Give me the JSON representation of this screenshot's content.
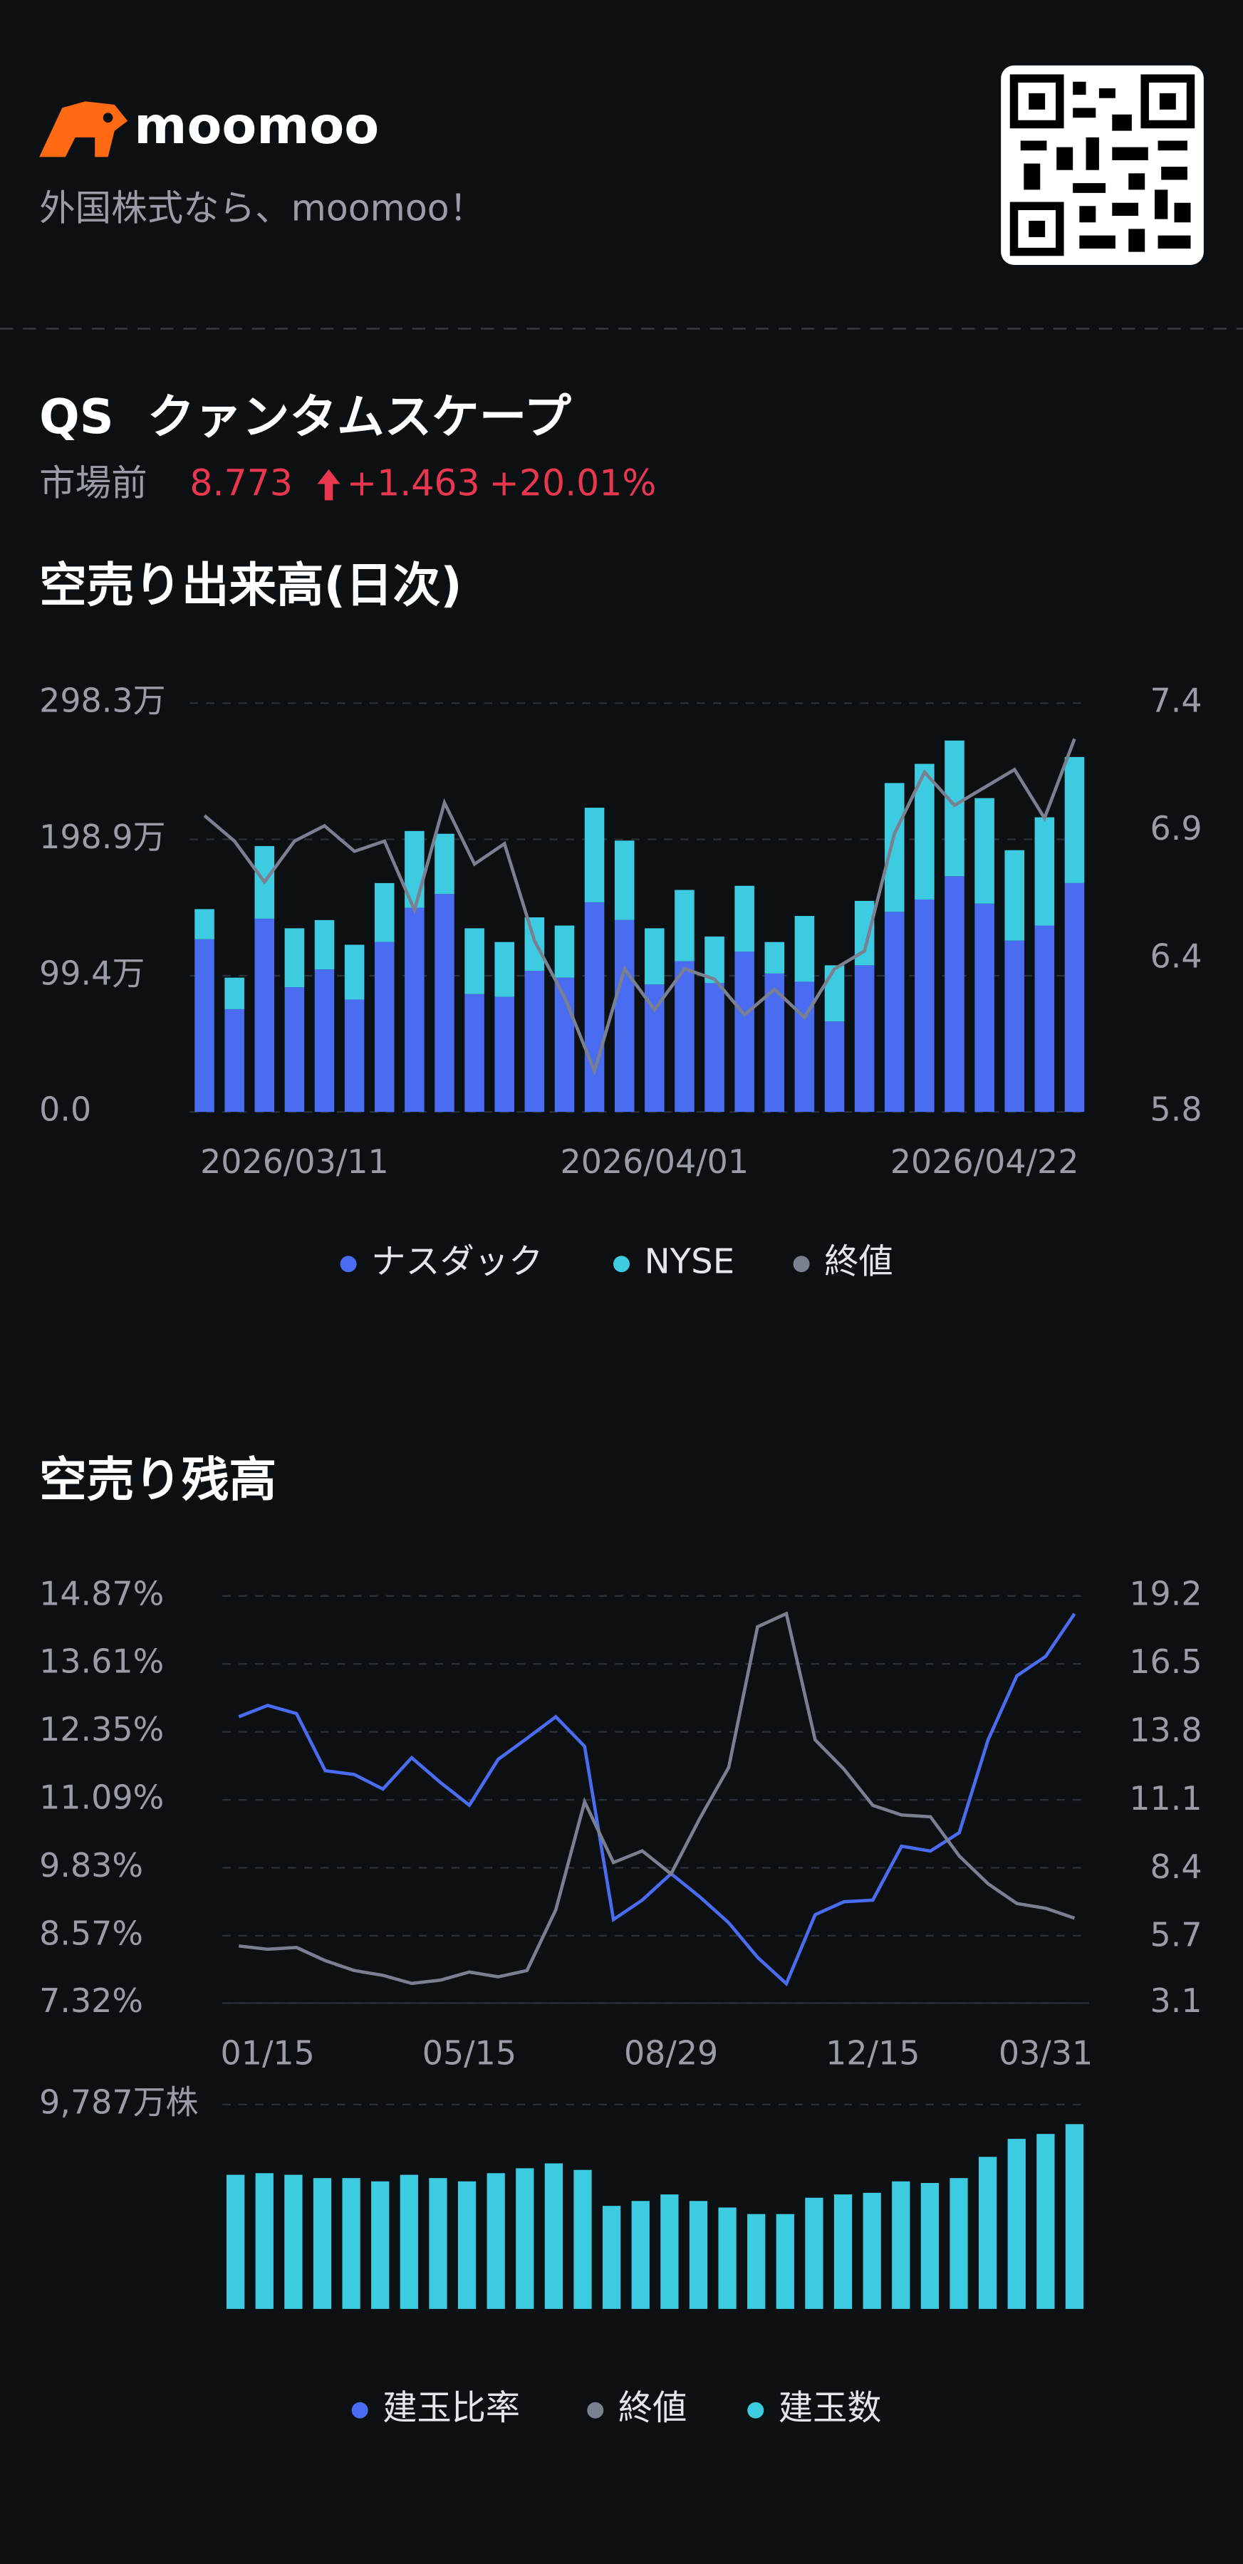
{
  "header": {
    "logo": "moomoo",
    "tagline": "外国株式なら、moomoo！",
    "ticker": "QS",
    "name": "クァンタムスケープ",
    "session": "市場前",
    "price": "8.773",
    "change": "+1.463",
    "change_pct": "+20.01%"
  },
  "chart_data": [
    {
      "type": "bar",
      "stacked": true,
      "title": "空売り出来高(日次)",
      "categories": [
        null,
        null,
        null,
        "2026/03/11",
        null,
        null,
        null,
        null,
        null,
        null,
        null,
        null,
        null,
        null,
        null,
        "2026/04/01",
        null,
        null,
        null,
        null,
        null,
        null,
        null,
        null,
        null,
        null,
        "2026/04/22",
        null,
        null,
        null
      ],
      "series": [
        {
          "name": "ナスダック",
          "color": "#4a6cf0",
          "values": [
            126,
            75,
            141,
            91,
            104,
            82,
            124,
            149,
            159,
            86,
            84,
            103,
            98,
            153,
            140,
            93,
            110,
            94,
            117,
            101,
            95,
            66,
            107,
            146,
            155,
            172,
            152,
            125,
            136,
            167
          ]
        },
        {
          "name": "NYSE",
          "color": "#3ccbe0",
          "values": [
            22,
            23,
            53,
            43,
            36,
            40,
            43,
            56,
            44,
            48,
            40,
            39,
            38,
            69,
            58,
            41,
            52,
            34,
            48,
            23,
            48,
            41,
            47,
            94,
            99,
            99,
            77,
            66,
            79,
            92
          ]
        },
        {
          "name": "終値",
          "color": "#7b8090",
          "type": "line",
          "axis": "y2",
          "values": [
            6.96,
            6.86,
            6.7,
            6.86,
            6.92,
            6.82,
            6.86,
            6.59,
            7.01,
            6.77,
            6.85,
            6.47,
            6.25,
            5.96,
            6.36,
            6.2,
            6.36,
            6.32,
            6.18,
            6.28,
            6.17,
            6.36,
            6.43,
            6.89,
            7.13,
            7.0,
            7.07,
            7.14,
            6.95,
            7.26
          ]
        }
      ],
      "ylim": [
        0,
        298.3
      ],
      "yticks": [
        {
          "value": 0,
          "label": "0.0"
        },
        {
          "value": 99.4,
          "label": "99.4万"
        },
        {
          "value": 198.9,
          "label": "198.9万"
        },
        {
          "value": 298.3,
          "label": "298.3万"
        }
      ],
      "y2lim": [
        5.8,
        7.4
      ],
      "y2ticks": [
        5.8,
        6.4,
        6.9,
        7.4
      ],
      "grid": true,
      "legend": "bottom"
    },
    {
      "type": "line",
      "title": "空売り残高",
      "categories": [
        null,
        "01/15",
        null,
        null,
        null,
        null,
        null,
        null,
        "05/15",
        null,
        null,
        null,
        null,
        null,
        null,
        "08/29",
        null,
        null,
        null,
        null,
        null,
        null,
        "12/15",
        null,
        null,
        null,
        null,
        null,
        "03/31",
        null
      ],
      "series": [
        {
          "name": "建玉比率",
          "color": "#4a6cf0",
          "values": [
            12.63,
            12.84,
            12.69,
            11.63,
            11.56,
            11.29,
            11.87,
            11.41,
            10.99,
            11.84,
            12.23,
            12.63,
            12.08,
            8.87,
            9.23,
            9.72,
            9.29,
            8.81,
            8.17,
            7.68,
            8.96,
            9.2,
            9.23,
            10.23,
            10.14,
            10.48,
            12.2,
            13.39,
            13.75,
            14.54
          ]
        },
        {
          "name": "終値",
          "color": "#7b8090",
          "axis": "y2",
          "values": [
            5.36,
            5.23,
            5.3,
            4.78,
            4.39,
            4.2,
            3.88,
            4.01,
            4.33,
            4.14,
            4.39,
            6.79,
            11.06,
            8.66,
            9.12,
            8.21,
            10.41,
            12.42,
            17.98,
            18.5,
            13.51,
            12.35,
            10.92,
            10.54,
            10.47,
            8.92,
            7.82,
            7.04,
            6.85,
            6.46
          ]
        }
      ],
      "ylim": [
        7.32,
        14.87
      ],
      "yticks": [
        {
          "value": 7.32,
          "label": "7.32%"
        },
        {
          "value": 8.57,
          "label": "8.57%"
        },
        {
          "value": 9.83,
          "label": "9.83%"
        },
        {
          "value": 11.09,
          "label": "11.09%"
        },
        {
          "value": 12.35,
          "label": "12.35%"
        },
        {
          "value": 13.61,
          "label": "13.61%"
        },
        {
          "value": 14.87,
          "label": "14.87%"
        }
      ],
      "y2lim": [
        3.1,
        19.2
      ],
      "y2ticks": [
        3.1,
        5.7,
        8.4,
        11.1,
        13.8,
        16.5,
        19.2
      ],
      "grid": true
    },
    {
      "type": "bar",
      "series": [
        {
          "name": "建玉数",
          "color": "#3ccbe0",
          "values": [
            6421,
            6499,
            6421,
            6264,
            6264,
            6107,
            6421,
            6264,
            6107,
            6499,
            6734,
            6969,
            6656,
            4933,
            5168,
            5481,
            5168,
            4855,
            4541,
            4541,
            5324,
            5481,
            5559,
            6107,
            6029,
            6264,
            7282,
            8143,
            8378,
            8848
          ]
        }
      ],
      "ylim": [
        0,
        9787
      ],
      "yticks": [
        {
          "value": 9787,
          "label": "9,787万株"
        }
      ],
      "grid": true
    }
  ]
}
